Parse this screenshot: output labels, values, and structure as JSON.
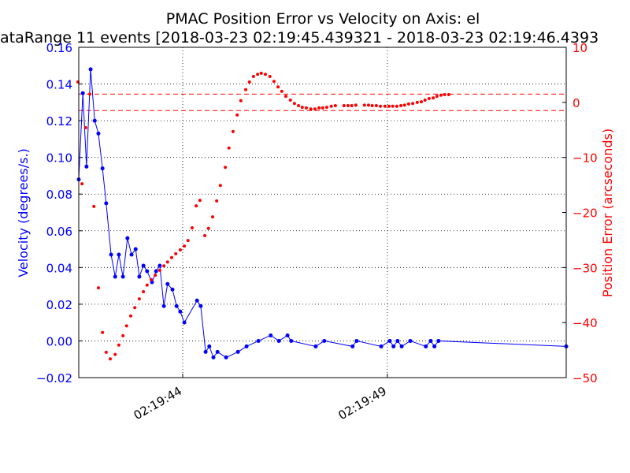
{
  "chart_data": {
    "type": "line",
    "title": "PMAC Position Error vs Velocity on Axis: el",
    "subtitle": "ataRange 11 events [2018-03-23 02:19:45.439321 - 2018-03-23 02:19:46.4393",
    "ylabel": "Velocity (degrees/s.)",
    "y2label": "Position Error (arcseconds)",
    "xlim": [
      41.46,
      53.37
    ],
    "xticks": [
      {
        "value": 44,
        "label": "02:19:44"
      },
      {
        "value": 49,
        "label": "02:19:49"
      }
    ],
    "ylim": [
      -0.02,
      0.16
    ],
    "yticks": [
      {
        "value": -0.02,
        "label": "−0.02"
      },
      {
        "value": 0,
        "label": "0.00"
      },
      {
        "value": 0.02,
        "label": "0.02"
      },
      {
        "value": 0.04,
        "label": "0.04"
      },
      {
        "value": 0.06,
        "label": "0.06"
      },
      {
        "value": 0.08,
        "label": "0.08"
      },
      {
        "value": 0.1,
        "label": "0.10"
      },
      {
        "value": 0.12,
        "label": "0.12"
      },
      {
        "value": 0.14,
        "label": "0.14"
      },
      {
        "value": 0.16,
        "label": "0.16"
      }
    ],
    "y2lim": [
      -50,
      10
    ],
    "y2ticks": [
      {
        "value": -50,
        "label": "−50"
      },
      {
        "value": -40,
        "label": "−40"
      },
      {
        "value": -30,
        "label": "−30"
      },
      {
        "value": -20,
        "label": "−20"
      },
      {
        "value": -10,
        "label": "−10"
      },
      0,
      10
    ],
    "grid": true,
    "series": [
      {
        "color": "#0000ff",
        "axis": "y",
        "line": true,
        "x": [
          41.46,
          41.56,
          41.65,
          41.75,
          41.85,
          41.94,
          42.04,
          42.13,
          42.25,
          42.35,
          42.44,
          42.54,
          42.65,
          42.75,
          42.85,
          42.94,
          43.04,
          43.13,
          43.25,
          43.35,
          43.44,
          43.54,
          43.63,
          43.75,
          43.85,
          43.94,
          44.04,
          44.35,
          44.44,
          44.56,
          44.65,
          44.75,
          44.85,
          45.06,
          45.35,
          45.56,
          45.85,
          46.15,
          46.35,
          46.56,
          46.65,
          47.25,
          47.46,
          48.15,
          48.25,
          48.85,
          49.06,
          49.15,
          49.25,
          49.35,
          49.56,
          49.94,
          50.06,
          50.15,
          50.25,
          53.37
        ],
        "values": [
          0.088,
          0.135,
          0.095,
          0.148,
          0.12,
          0.113,
          0.094,
          0.075,
          0.047,
          0.035,
          0.047,
          0.035,
          0.056,
          0.047,
          0.05,
          0.035,
          0.041,
          0.038,
          0.032,
          0.038,
          0.041,
          0.019,
          0.031,
          0.028,
          0.019,
          0.016,
          0.01,
          0.022,
          0.019,
          -0.006,
          -0.003,
          -0.009,
          -0.006,
          -0.009,
          -0.006,
          -0.003,
          0,
          0.003,
          0,
          0.003,
          0,
          -0.003,
          0,
          -0.003,
          0,
          -0.003,
          0,
          -0.003,
          0,
          -0.003,
          0,
          -0.003,
          0,
          -0.003,
          0,
          -0.003
        ]
      },
      {
        "color": "#ff0000",
        "axis": "y2",
        "line": false,
        "x": [
          41.44,
          41.54,
          41.63,
          41.73,
          41.83,
          41.94,
          42.04,
          42.13,
          42.23,
          42.35,
          42.44,
          42.54,
          42.63,
          42.73,
          42.83,
          42.94,
          43.04,
          43.13,
          43.23,
          43.33,
          43.44,
          43.54,
          43.63,
          43.73,
          43.83,
          43.94,
          44.04,
          44.13,
          44.23,
          44.33,
          44.42,
          44.54,
          44.63,
          44.73,
          44.83,
          44.92,
          45.04,
          45.13,
          45.23,
          45.33,
          45.42,
          45.54,
          45.63,
          45.73,
          45.83,
          45.92,
          46.02,
          46.13,
          46.23,
          46.33,
          46.42,
          46.52,
          46.63,
          46.73,
          46.83,
          46.92,
          47.02,
          47.13,
          47.23,
          47.33,
          47.42,
          47.52,
          47.63,
          47.73,
          47.94,
          48.04,
          48.13,
          48.23,
          48.44,
          48.54,
          48.63,
          48.73,
          48.83,
          48.94,
          49.04,
          49.13,
          49.23,
          49.33,
          49.42,
          49.52,
          49.62,
          49.73,
          49.83,
          49.92,
          50.02,
          50.12,
          50.21,
          50.31,
          50.4,
          50.5
        ],
        "values": [
          3.7,
          -14.8,
          -4.6,
          1.5,
          -18.9,
          -33.7,
          -41.8,
          -45.4,
          -46.6,
          -45.8,
          -44.1,
          -42.4,
          -40.6,
          -38.8,
          -37.3,
          -35.7,
          -34.4,
          -33.2,
          -32.2,
          -31.4,
          -30.5,
          -29.7,
          -29,
          -28.2,
          -27.5,
          -26.8,
          -26.1,
          -25.1,
          -22.8,
          -18.8,
          -17.8,
          -24.2,
          -22.9,
          -20.8,
          -17.9,
          -15.1,
          -11.8,
          -8.3,
          -5.3,
          -2.3,
          0.3,
          2.3,
          3.7,
          4.7,
          5.1,
          5.3,
          5.1,
          4.7,
          3.8,
          2.8,
          2,
          1.1,
          0.4,
          -0.2,
          -0.6,
          -0.9,
          -1,
          -1.2,
          -1.2,
          -1,
          -1,
          -0.9,
          -0.7,
          -0.6,
          -0.6,
          -0.6,
          -0.6,
          -0.5,
          -0.5,
          -0.5,
          -0.6,
          -0.6,
          -0.7,
          -0.7,
          -0.7,
          -0.7,
          -0.7,
          -0.6,
          -0.5,
          -0.3,
          -0.2,
          0,
          0.1,
          0.4,
          0.7,
          0.8,
          1.1,
          1.3,
          1.4,
          1.4
        ]
      }
    ],
    "hlines": [
      {
        "value": 1.5,
        "axis": "y2",
        "color": "#ff0000"
      },
      {
        "value": -1.5,
        "axis": "y2",
        "color": "#ff0000"
      }
    ]
  }
}
